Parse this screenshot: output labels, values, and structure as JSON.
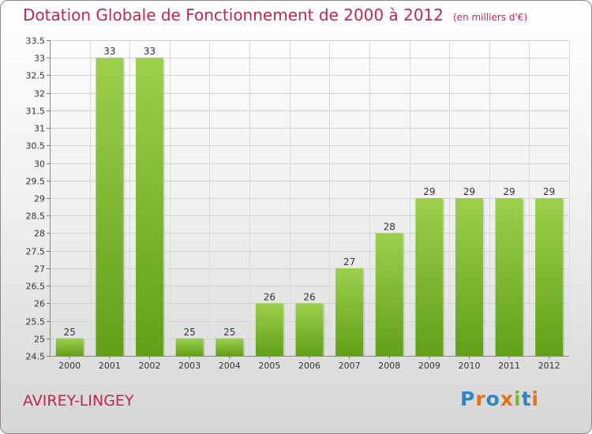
{
  "chart_data": {
    "type": "bar",
    "title": "Dotation Globale de Fonctionnement de 2000 à 2012",
    "subtitle": "(en milliers d'€)",
    "categories": [
      "2000",
      "2001",
      "2002",
      "2003",
      "2004",
      "2005",
      "2006",
      "2007",
      "2008",
      "2009",
      "2010",
      "2011",
      "2012"
    ],
    "values": [
      25,
      33,
      33,
      25,
      25,
      26,
      26,
      27,
      28,
      29,
      29,
      29,
      29
    ],
    "ylim": [
      24.5,
      33.5
    ],
    "yticks": [
      24.5,
      25,
      25.5,
      26,
      26.5,
      27,
      27.5,
      28,
      28.5,
      29,
      29.5,
      30,
      30.5,
      31,
      31.5,
      32,
      32.5,
      33,
      33.5
    ],
    "grid": true,
    "xlabel": "",
    "ylabel": "",
    "bar_color": "#7cbf2a",
    "title_color": "#c0264e"
  },
  "footer": {
    "commune": "AVIREY-LINGEY",
    "logo_letters": [
      {
        "char": "P",
        "color": "#2b86c8"
      },
      {
        "char": "r",
        "color": "#e8701a"
      },
      {
        "char": "o",
        "color": "#2b86c8"
      },
      {
        "char": "x",
        "color": "#e8701a"
      },
      {
        "char": "i",
        "color": "#7cb82f"
      },
      {
        "char": "t",
        "color": "#2b86c8"
      },
      {
        "char": "i",
        "color": "#e8701a"
      }
    ]
  }
}
